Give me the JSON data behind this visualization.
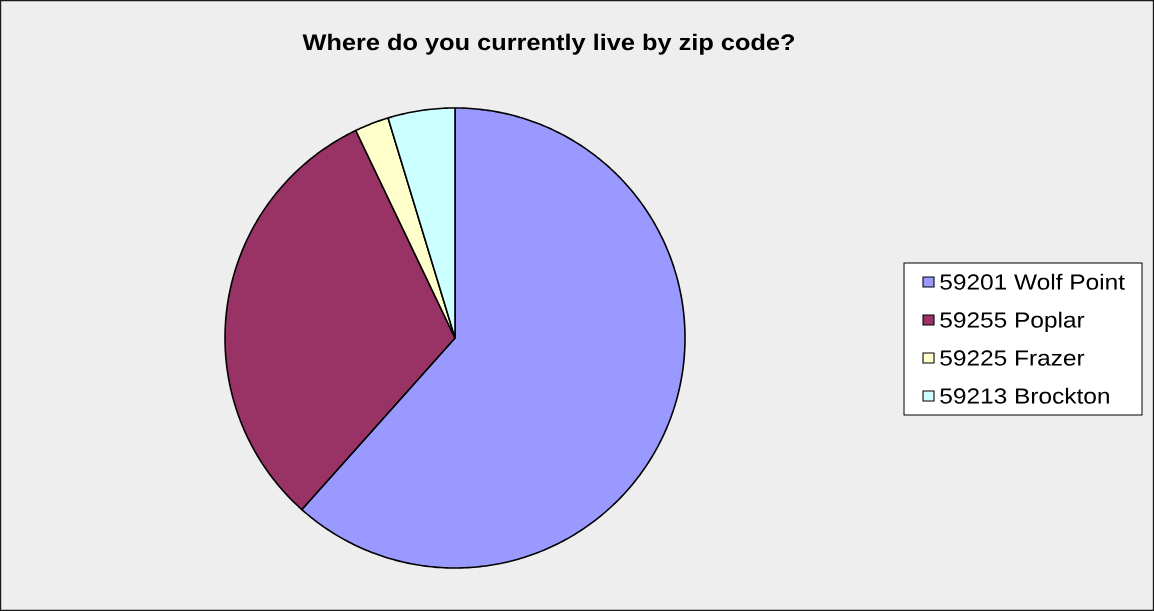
{
  "chart_data": {
    "type": "pie",
    "title": "Where do you currently live by zip code?",
    "categories": [
      "59201 Wolf Point",
      "59255 Poplar",
      "59225 Frazer",
      "59213 Brockton"
    ],
    "values": [
      61.6,
      31.3,
      2.4,
      4.7
    ],
    "colors": [
      "#9999ff",
      "#993366",
      "#ffffcc",
      "#ccffff"
    ],
    "legend": "right"
  }
}
